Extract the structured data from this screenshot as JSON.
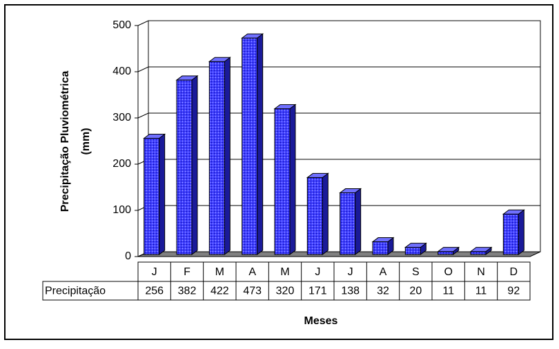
{
  "chart_data": {
    "type": "bar3d",
    "y_label": [
      "Precipitação Pluviométrica",
      "(mm)"
    ],
    "x_label": "Meses",
    "categories": [
      "J",
      "F",
      "M",
      "A",
      "M",
      "J",
      "J",
      "A",
      "S",
      "O",
      "N",
      "D"
    ],
    "series": [
      {
        "name": "Precipitação",
        "color": "#3f3fff",
        "values": [
          256,
          382,
          422,
          473,
          320,
          171,
          138,
          32,
          20,
          11,
          11,
          92
        ]
      }
    ],
    "ylim": [
      0,
      500
    ],
    "yticks": [
      0,
      100,
      200,
      300,
      400,
      500
    ],
    "grid": true
  }
}
